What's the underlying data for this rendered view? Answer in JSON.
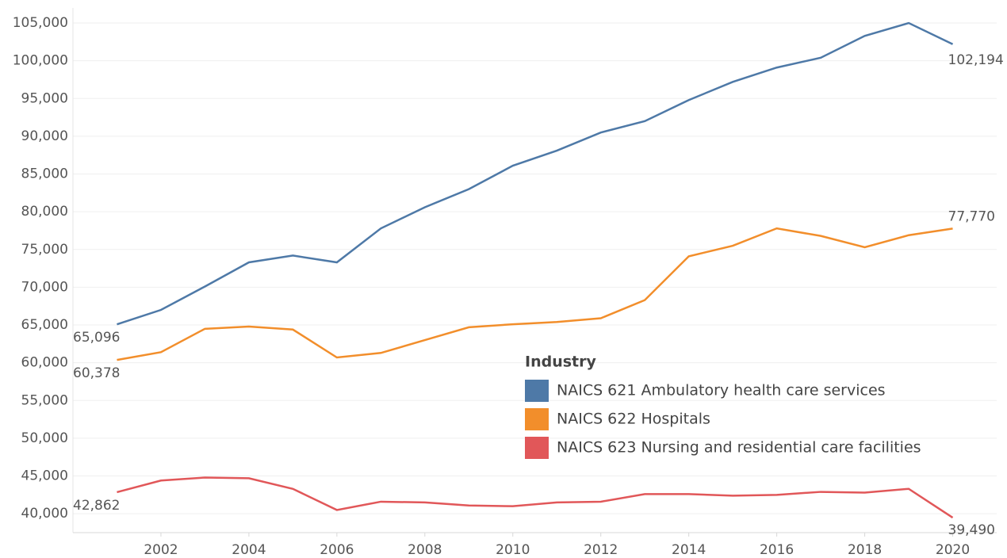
{
  "chart_data": {
    "type": "line",
    "x": [
      2001,
      2002,
      2003,
      2004,
      2005,
      2006,
      2007,
      2008,
      2009,
      2010,
      2011,
      2012,
      2013,
      2014,
      2015,
      2016,
      2017,
      2018,
      2019,
      2020
    ],
    "xlim": [
      2000,
      2021
    ],
    "xticks": [
      2002,
      2004,
      2006,
      2008,
      2010,
      2012,
      2014,
      2016,
      2018,
      2020
    ],
    "ylim": [
      37500,
      107000
    ],
    "yticks": [
      {
        "value": 40000,
        "label": "40,000"
      },
      {
        "value": 45000,
        "label": "45,000"
      },
      {
        "value": 50000,
        "label": "50,000"
      },
      {
        "value": 55000,
        "label": "55,000"
      },
      {
        "value": 60000,
        "label": "60,000"
      },
      {
        "value": 65000,
        "label": "65,000"
      },
      {
        "value": 70000,
        "label": "70,000"
      },
      {
        "value": 75000,
        "label": "75,000"
      },
      {
        "value": 80000,
        "label": "80,000"
      },
      {
        "value": 85000,
        "label": "85,000"
      },
      {
        "value": 90000,
        "label": "90,000"
      },
      {
        "value": 95000,
        "label": "95,000"
      },
      {
        "value": 100000,
        "label": "100,000"
      },
      {
        "value": 105000,
        "label": "105,000"
      }
    ],
    "grid": true,
    "legend_title": "Industry",
    "legend_position": "lower right",
    "series": [
      {
        "name": "NAICS 621 Ambulatory health care services",
        "color": "#4e79a7",
        "values": [
          65096,
          67000,
          70100,
          73300,
          74200,
          73300,
          77800,
          80600,
          83000,
          86100,
          88100,
          90500,
          92000,
          94800,
          97200,
          99100,
          100400,
          103300,
          105000,
          102194
        ],
        "value_labels": [
          "65,096",
          null,
          null,
          null,
          null,
          null,
          null,
          null,
          null,
          null,
          null,
          null,
          null,
          null,
          null,
          null,
          null,
          null,
          null,
          "102,194"
        ]
      },
      {
        "name": "NAICS 622 Hospitals",
        "color": "#f28e2b",
        "values": [
          60378,
          61400,
          64500,
          64800,
          64400,
          60700,
          61300,
          63000,
          64700,
          65100,
          65400,
          65900,
          68300,
          74100,
          75500,
          77800,
          76800,
          75300,
          76900,
          77770
        ],
        "value_labels": [
          "60,378",
          null,
          null,
          null,
          null,
          null,
          null,
          null,
          null,
          null,
          null,
          null,
          null,
          null,
          null,
          null,
          null,
          null,
          null,
          "77,770"
        ]
      },
      {
        "name": "NAICS 623 Nursing and residential care facilities",
        "color": "#e15759",
        "values": [
          42862,
          44400,
          44800,
          44700,
          43300,
          40500,
          41600,
          41500,
          41100,
          41000,
          41500,
          41600,
          42600,
          42600,
          42400,
          42500,
          42900,
          42800,
          43300,
          39490
        ],
        "value_labels": [
          "42,862",
          null,
          null,
          null,
          null,
          null,
          null,
          null,
          null,
          null,
          null,
          null,
          null,
          null,
          null,
          null,
          null,
          null,
          null,
          "39,490"
        ]
      }
    ]
  }
}
